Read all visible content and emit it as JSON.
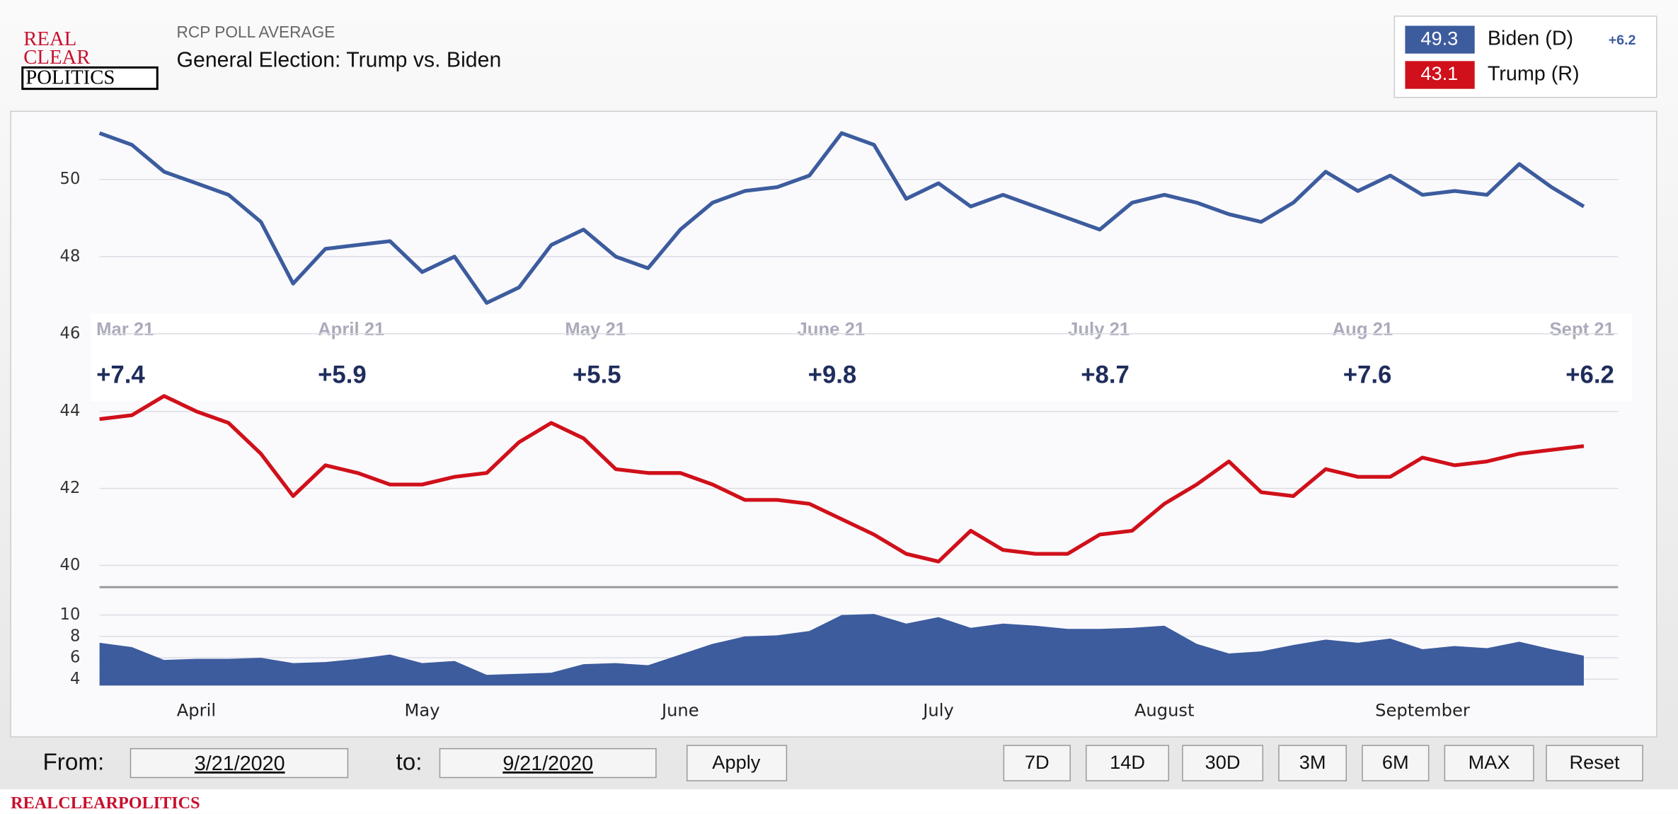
{
  "header": {
    "logo": [
      "REAL",
      "CLEAR",
      "POLITICS"
    ],
    "subtitle": "RCP POLL AVERAGE",
    "title": "General Election: Trump vs. Biden"
  },
  "legend": [
    {
      "value": 49.3,
      "name": "Biden (D)",
      "change": "+6.2",
      "color": "#3d5c9e"
    },
    {
      "value": 43.1,
      "name": "Trump (R)",
      "color": "#d0101a"
    }
  ],
  "spread_band": [
    {
      "date": "Mar 21",
      "spread": "+7.4"
    },
    {
      "date": "April 21",
      "spread": "+5.9"
    },
    {
      "date": "May 21",
      "spread": "+5.5"
    },
    {
      "date": "June 21",
      "spread": "+9.8"
    },
    {
      "date": "July 21",
      "spread": "+8.7"
    },
    {
      "date": "Aug 21",
      "spread": "+7.6"
    },
    {
      "date": "Sept 21",
      "spread": "+6.2"
    }
  ],
  "chart_data": [
    {
      "type": "line",
      "color": "#3d5c9e",
      "ylim": [
        46,
        51.6
      ],
      "yticks": [
        46,
        48,
        50
      ],
      "grid": true,
      "values": [
        51.2,
        50.9,
        50.2,
        49.9,
        49.6,
        48.9,
        47.3,
        48.2,
        48.3,
        48.4,
        47.6,
        48.0,
        46.8,
        47.2,
        48.3,
        48.7,
        48.0,
        47.7,
        48.7,
        49.4,
        49.7,
        49.8,
        50.1,
        51.2,
        50.9,
        49.5,
        49.9,
        49.3,
        49.6,
        49.3,
        49.0,
        48.7,
        49.4,
        49.6,
        49.4,
        49.1,
        48.9,
        49.4,
        50.2,
        49.7,
        50.1,
        49.6,
        49.7,
        49.6,
        50.4,
        49.8,
        49.3
      ]
    },
    {
      "type": "line",
      "color": "#d0101a",
      "ylim": [
        39.6,
        44.5
      ],
      "yticks": [
        40,
        42,
        44
      ],
      "grid": true,
      "values": [
        43.8,
        43.9,
        44.4,
        44.0,
        43.7,
        42.9,
        41.8,
        42.6,
        42.4,
        42.1,
        42.1,
        42.3,
        42.4,
        43.2,
        43.7,
        43.3,
        42.5,
        42.4,
        42.4,
        42.1,
        41.7,
        41.7,
        41.6,
        41.2,
        40.8,
        40.3,
        40.1,
        40.9,
        40.4,
        40.3,
        40.3,
        40.8,
        40.9,
        41.6,
        42.1,
        42.7,
        41.9,
        41.8,
        42.5,
        42.3,
        42.3,
        42.8,
        42.6,
        42.7,
        42.9,
        43.0,
        43.1
      ]
    },
    {
      "type": "area",
      "color": "#3d5c9e",
      "ylim": [
        3.4,
        10.6
      ],
      "yticks": [
        4,
        6,
        8,
        10
      ],
      "grid": true,
      "categories": [
        null,
        null,
        null,
        "April",
        null,
        null,
        null,
        null,
        null,
        null,
        "May",
        null,
        null,
        null,
        null,
        null,
        null,
        null,
        "June",
        null,
        null,
        null,
        null,
        null,
        null,
        null,
        "July",
        null,
        null,
        null,
        null,
        null,
        null,
        "August",
        null,
        null,
        null,
        null,
        null,
        null,
        null,
        "September",
        null,
        null,
        null,
        null,
        null
      ],
      "values": [
        7.4,
        7.0,
        5.8,
        5.9,
        5.9,
        6.0,
        5.5,
        5.6,
        5.9,
        6.3,
        5.5,
        5.7,
        4.4,
        4.5,
        4.6,
        5.4,
        5.5,
        5.3,
        6.3,
        7.3,
        8.0,
        8.1,
        8.5,
        10.0,
        10.1,
        9.2,
        9.8,
        8.8,
        9.2,
        9.0,
        8.7,
        8.7,
        8.8,
        9.0,
        7.3,
        6.4,
        6.6,
        7.2,
        7.7,
        7.4,
        7.8,
        6.8,
        7.1,
        6.9,
        7.5,
        6.8,
        6.2
      ]
    }
  ],
  "controls": {
    "from_label": "From:",
    "from": "3/21/2020",
    "to_label": "to:",
    "to": "9/21/2020",
    "apply": "Apply",
    "ranges": [
      "7D",
      "14D",
      "30D",
      "3M",
      "6M",
      "MAX",
      "Reset"
    ]
  },
  "footer": "REALCLEARPOLITICS"
}
